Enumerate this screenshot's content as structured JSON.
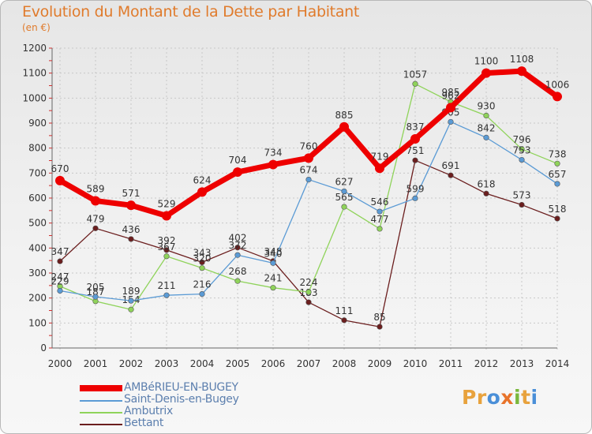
{
  "header": {
    "title": "Evolution du Montant de la Dette par Habitant",
    "subtitle": "(en €)"
  },
  "logo": {
    "letters": [
      "P",
      "r",
      "o",
      "x",
      "i",
      "t",
      "i"
    ],
    "colors": [
      "#e8a23d",
      "#e8a23d",
      "#4a8fd8",
      "#e8732a",
      "#7ab83c",
      "#e8a23d",
      "#4a8fd8"
    ]
  },
  "chart_data": {
    "type": "line",
    "title": "Evolution du Montant de la Dette par Habitant",
    "ylabel": "(en €)",
    "xlabel": "",
    "categories": [
      "2000",
      "2001",
      "2002",
      "2003",
      "2004",
      "2005",
      "2006",
      "2007",
      "2008",
      "2009",
      "2010",
      "2011",
      "2012",
      "2013",
      "2014"
    ],
    "ylim": [
      0,
      1200
    ],
    "yticks": [
      0,
      100,
      200,
      300,
      400,
      500,
      600,
      700,
      800,
      900,
      1000,
      1100,
      1200
    ],
    "grid": true,
    "legend": "bottom-left",
    "series": [
      {
        "name": "Bettant",
        "color": "#6b1e1e",
        "values": [
          347,
          479,
          436,
          392,
          343,
          402,
          348,
          183,
          111,
          85,
          751,
          691,
          618,
          573,
          518
        ]
      },
      {
        "name": "Ambutrix",
        "color": "#8fd35a",
        "values": [
          247,
          187,
          154,
          367,
          320,
          268,
          241,
          224,
          565,
          477,
          1057,
          985,
          930,
          796,
          738
        ]
      },
      {
        "name": "Saint-Denis-en-Bugey",
        "color": "#5b9bd5",
        "values": [
          229,
          205,
          189,
          211,
          216,
          372,
          340,
          674,
          627,
          546,
          599,
          905,
          842,
          753,
          657
        ]
      },
      {
        "name": "AMBéRIEU-EN-BUGEY",
        "color": "#ee0000",
        "values": [
          670,
          589,
          571,
          529,
          624,
          704,
          734,
          760,
          885,
          719,
          837,
          962,
          1100,
          1108,
          1006
        ]
      }
    ]
  }
}
